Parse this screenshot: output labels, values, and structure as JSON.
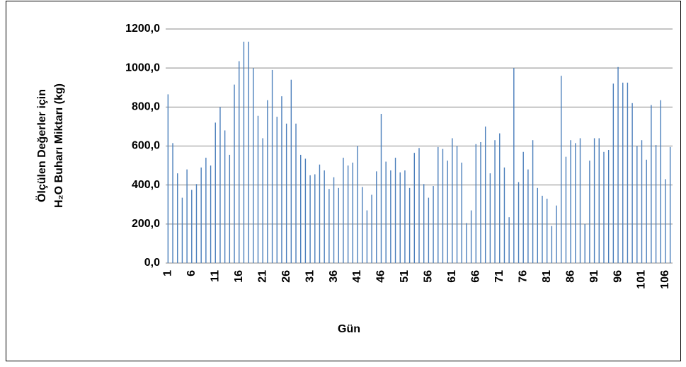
{
  "chart_data": {
    "type": "bar",
    "ylabel": [
      "Ölçülen Değerler için",
      "H₂O Buharı Miktarı (kg)"
    ],
    "xlabel": "Gün",
    "categories": [
      1,
      null,
      null,
      null,
      null,
      6,
      null,
      null,
      null,
      null,
      11,
      null,
      null,
      null,
      null,
      16,
      null,
      null,
      null,
      null,
      21,
      null,
      null,
      null,
      null,
      26,
      null,
      null,
      null,
      null,
      31,
      null,
      null,
      null,
      null,
      36,
      null,
      null,
      null,
      null,
      41,
      null,
      null,
      null,
      null,
      46,
      null,
      null,
      null,
      null,
      51,
      null,
      null,
      null,
      null,
      56,
      null,
      null,
      null,
      null,
      61,
      null,
      null,
      null,
      null,
      66,
      null,
      null,
      null,
      null,
      71,
      null,
      null,
      null,
      null,
      76,
      null,
      null,
      null,
      null,
      81,
      null,
      null,
      null,
      null,
      86,
      null,
      null,
      null,
      null,
      91,
      null,
      null,
      null,
      null,
      96,
      null,
      null,
      null,
      null,
      101,
      null,
      null,
      null,
      null,
      106,
      null
    ],
    "values": [
      865,
      615,
      460,
      335,
      480,
      375,
      405,
      490,
      540,
      500,
      720,
      800,
      680,
      555,
      915,
      1035,
      1135,
      1135,
      1000,
      755,
      640,
      835,
      990,
      750,
      855,
      715,
      940,
      715,
      555,
      535,
      450,
      455,
      505,
      475,
      380,
      440,
      385,
      540,
      500,
      515,
      600,
      390,
      270,
      350,
      470,
      765,
      520,
      475,
      540,
      465,
      475,
      385,
      565,
      590,
      405,
      335,
      395,
      595,
      585,
      525,
      640,
      600,
      515,
      205,
      270,
      610,
      620,
      700,
      460,
      630,
      665,
      490,
      235,
      1000,
      415,
      570,
      480,
      630,
      385,
      345,
      330,
      190,
      295,
      960,
      545,
      630,
      615,
      640,
      200,
      525,
      640,
      640,
      570,
      580,
      920,
      1005,
      925,
      925,
      820,
      600,
      630,
      530,
      810,
      605,
      835,
      430,
      595
    ],
    "color": "#4a7ebb",
    "ylim": [
      0,
      1200
    ],
    "yticks": [
      {
        "value": 0,
        "label": "0,0"
      },
      {
        "value": 200,
        "label": "200,0"
      },
      {
        "value": 400,
        "label": "400,0"
      },
      {
        "value": 600,
        "label": "600,0"
      },
      {
        "value": 800,
        "label": "800,0"
      },
      {
        "value": 1000,
        "label": "1000,0"
      },
      {
        "value": 1200,
        "label": "1200,0"
      }
    ],
    "grid": true
  }
}
